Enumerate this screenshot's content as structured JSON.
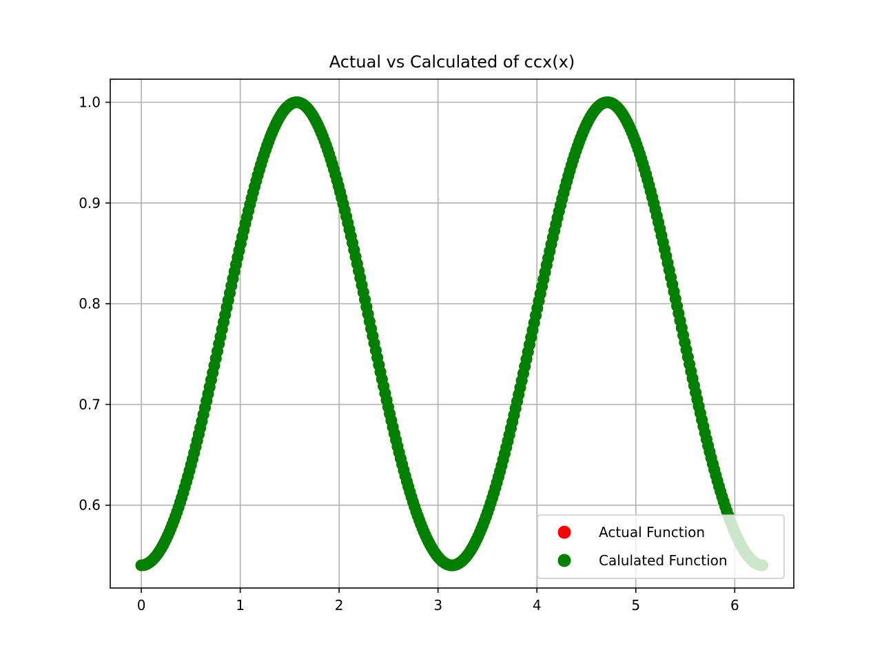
{
  "chart_data": {
    "type": "scatter",
    "title": "Actual vs Calculated of ccx(x)",
    "xlabel": "",
    "ylabel": "",
    "xlim": [
      -0.314,
      6.597
    ],
    "ylim": [
      0.5178,
      1.0229
    ],
    "x_ticks": [
      0,
      1,
      2,
      3,
      4,
      5,
      6
    ],
    "x_tick_labels": [
      "0",
      "1",
      "2",
      "3",
      "4",
      "5",
      "6"
    ],
    "y_ticks": [
      0.6,
      0.7,
      0.8,
      0.9,
      1.0
    ],
    "y_tick_labels": [
      "0.6",
      "0.7",
      "0.8",
      "0.9",
      "1.0"
    ],
    "grid": true,
    "legend_position": "lower right",
    "x_range": [
      0,
      6.2832
    ],
    "sample_step": 0.0157,
    "series": [
      {
        "name": "Actual Function",
        "color": "#ff0000",
        "marker": "circle",
        "function": "cos(cos(x))",
        "note_hidden_under": "Calulated Function"
      },
      {
        "name": "Calulated Function",
        "color": "#008000",
        "marker": "circle",
        "function": "cos(cos(x))"
      }
    ],
    "key_points": [
      {
        "x": 0,
        "y": 0.5403
      },
      {
        "x": 1.5708,
        "y": 1.0
      },
      {
        "x": 3.1416,
        "y": 0.5403
      },
      {
        "x": 4.7124,
        "y": 1.0
      },
      {
        "x": 6.2832,
        "y": 0.5403
      }
    ]
  }
}
